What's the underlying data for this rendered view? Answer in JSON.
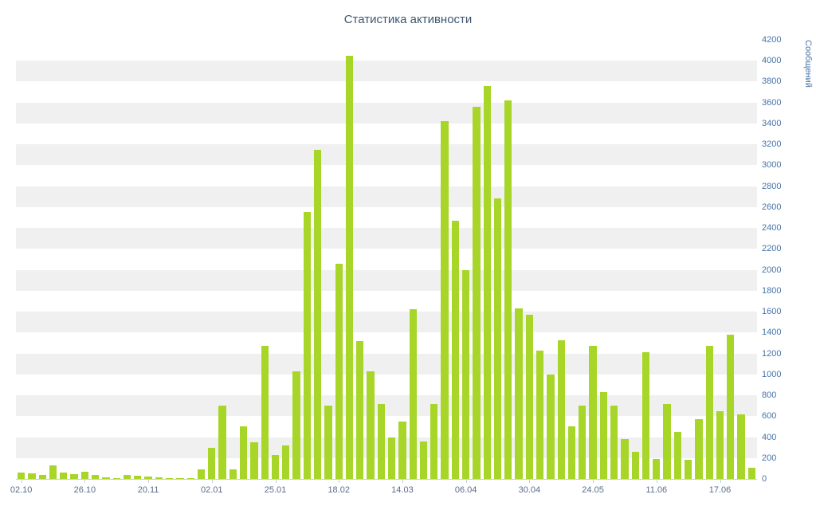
{
  "chart_data": {
    "type": "bar",
    "title": "Статистика активности",
    "ylabel": "Сообщений",
    "xlabel": "",
    "ylim": [
      0,
      4200
    ],
    "ytick_interval": 200,
    "yaxis_position": "right",
    "grid": "alternating-horizontal-bands",
    "legend": "none",
    "xtick_labels": [
      "02.10",
      "26.10",
      "20.11",
      "02.01",
      "25.01",
      "18.02",
      "14.03",
      "06.04",
      "30.04",
      "24.05",
      "11.06",
      "17.06"
    ],
    "xtick_indices": [
      0,
      6,
      12,
      18,
      24,
      30,
      36,
      42,
      48,
      54,
      60,
      66
    ],
    "values": [
      60,
      50,
      40,
      130,
      60,
      45,
      70,
      40,
      15,
      10,
      40,
      30,
      25,
      15,
      10,
      8,
      5,
      95,
      300,
      700,
      90,
      500,
      350,
      1270,
      230,
      320,
      1030,
      2550,
      3150,
      700,
      2060,
      4050,
      1320,
      1030,
      720,
      400,
      550,
      1620,
      360,
      720,
      3420,
      2470,
      2000,
      3560,
      3760,
      2680,
      3620,
      1630,
      1570,
      1230,
      1000,
      1330,
      500,
      700,
      1270,
      830,
      700,
      380,
      260,
      1210,
      190,
      720,
      450,
      180,
      570,
      1270,
      650,
      1380,
      620,
      110
    ],
    "colors": {
      "bar": "#a7d629",
      "band": "#f0f0f0",
      "title": "#3e576f",
      "xaxis_label": "#5a6e8c",
      "yaxis_label": "#4673a8",
      "axis_line": "#c0d0e0",
      "background": "#ffffff"
    }
  }
}
